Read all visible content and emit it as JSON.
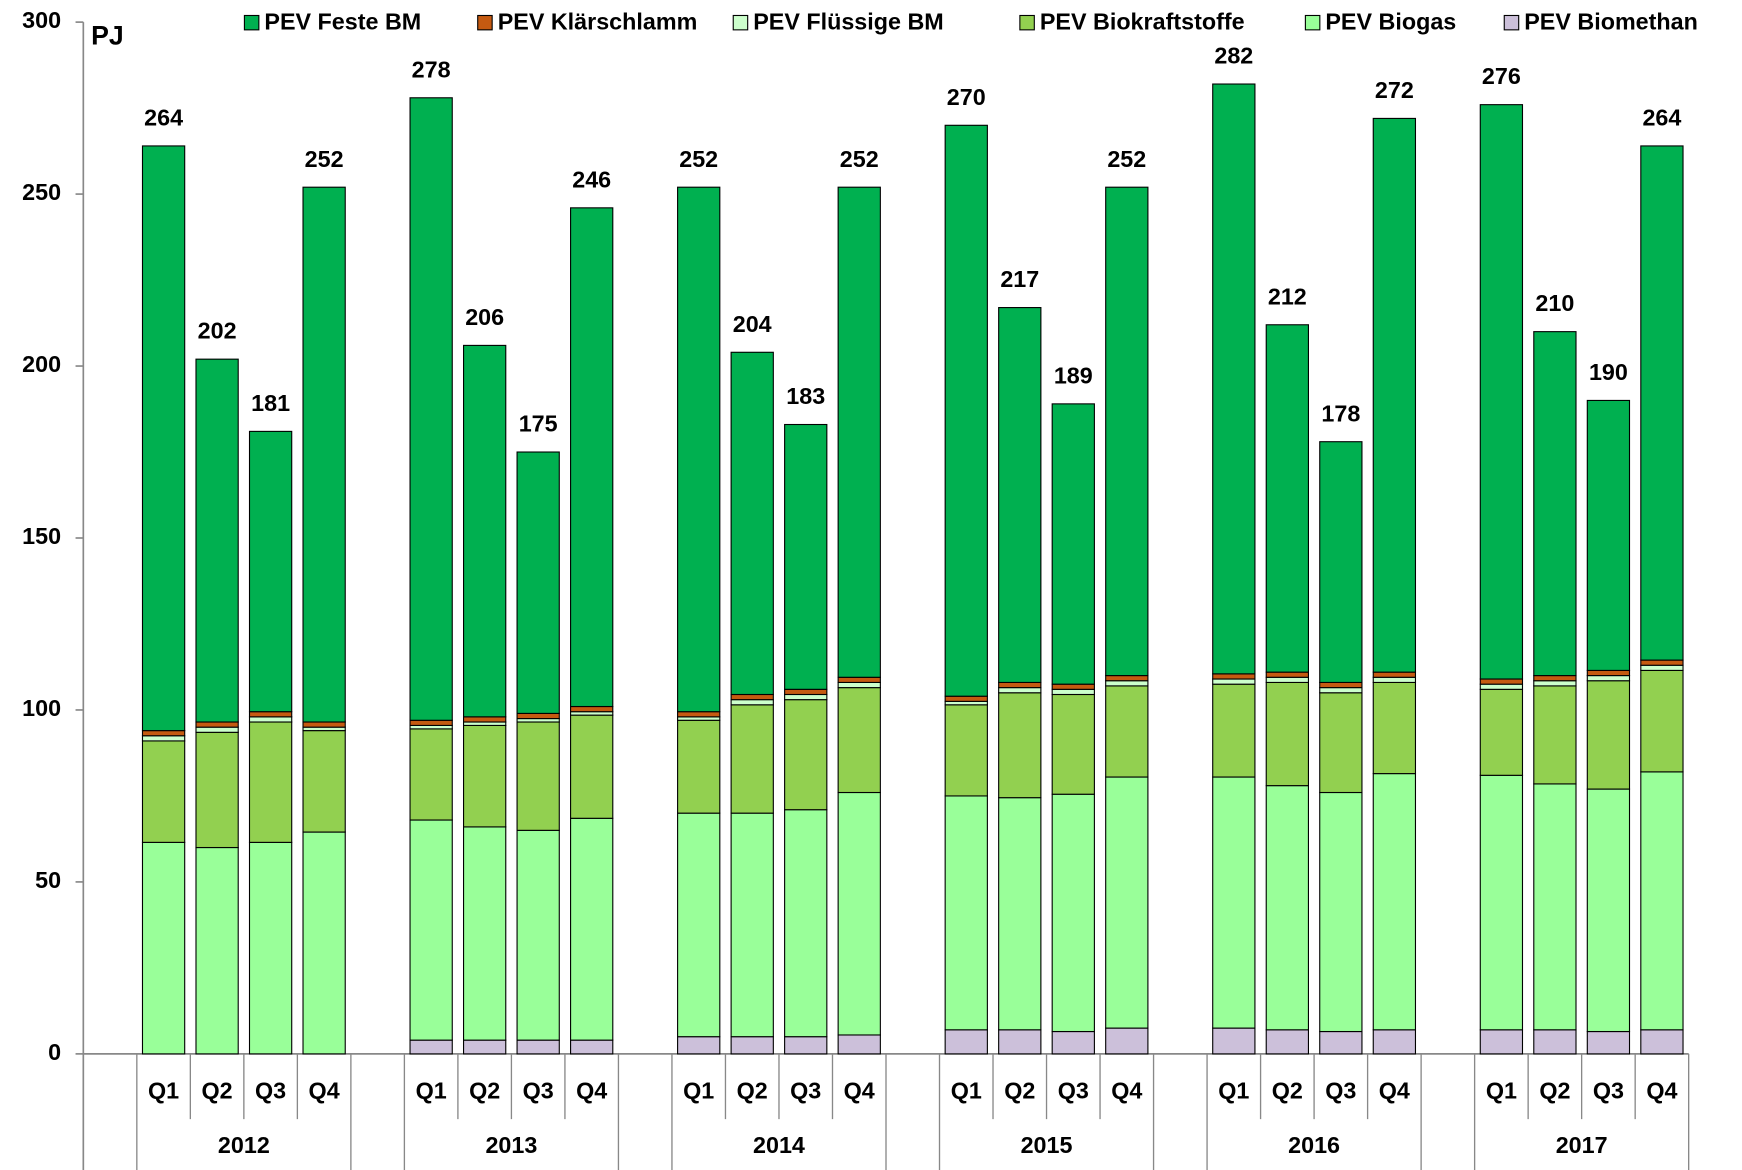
{
  "chart_data": {
    "type": "stacked_bar",
    "ylabel": "PJ",
    "groups": [
      "2012",
      "2013",
      "2014",
      "2015",
      "2016",
      "2017"
    ],
    "categories": [
      "Q1",
      "Q2",
      "Q3",
      "Q4",
      "Q1",
      "Q2",
      "Q3",
      "Q4",
      "Q1",
      "Q2",
      "Q3",
      "Q4",
      "Q1",
      "Q2",
      "Q3",
      "Q4",
      "Q1",
      "Q2",
      "Q3",
      "Q4",
      "Q1",
      "Q2",
      "Q3",
      "Q4"
    ],
    "series": [
      {
        "name": "PEV Feste BM",
        "color": "#00b050",
        "values": [
          170,
          105.5,
          81.5,
          155.5,
          181,
          108,
          76,
          145,
          152.5,
          99.5,
          77,
          142.5,
          166,
          109,
          81.5,
          142,
          171.5,
          101,
          70,
          161,
          167,
          100,
          78.5,
          149.5
        ]
      },
      {
        "name": "PEV Klärschlamm",
        "color": "#c55a11",
        "values": [
          1.5,
          1.5,
          1.5,
          1.5,
          1.5,
          1.5,
          1.5,
          1.5,
          1.5,
          1.5,
          1.5,
          1.5,
          1.5,
          1.5,
          1.5,
          1.5,
          1.5,
          1.5,
          1.5,
          1.5,
          1.5,
          1.5,
          1.5,
          1.5
        ]
      },
      {
        "name": "PEV Flüssige BM",
        "color": "#ccffcc",
        "values": [
          1.5,
          1.5,
          1.5,
          1,
          1,
          1,
          1,
          1,
          1,
          1.5,
          1.5,
          1.5,
          1,
          1.5,
          1.5,
          1.5,
          1.5,
          1.5,
          1.5,
          1.5,
          1.5,
          1.5,
          1.5,
          1.5
        ]
      },
      {
        "name": "PEV Biokraftstoffe",
        "color": "#92d050",
        "values": [
          29.5,
          33.5,
          35,
          29.5,
          26.5,
          29.5,
          31.5,
          30,
          27,
          31.5,
          32,
          30.5,
          26.5,
          30.5,
          29,
          26.5,
          27,
          30,
          29,
          26.5,
          25,
          28.5,
          31.5,
          29.5
        ]
      },
      {
        "name": "PEV Biogas",
        "color": "#99ff99",
        "values": [
          61.5,
          60,
          61.5,
          64.5,
          64,
          62,
          61,
          64.5,
          65,
          65,
          66,
          70.5,
          68,
          67.5,
          69,
          73,
          73,
          71,
          69.5,
          74.5,
          74,
          71.5,
          70.5,
          75
        ]
      },
      {
        "name": "PEV Biomethan",
        "color": "#ccc0da",
        "values": [
          0,
          0,
          0,
          0,
          4,
          4,
          4,
          4,
          5,
          5,
          5,
          5.5,
          7,
          7,
          6.5,
          7.5,
          7.5,
          7,
          6.5,
          7,
          7,
          7,
          6.5,
          7
        ]
      }
    ],
    "totals": [
      264,
      202,
      181,
      252,
      278,
      206,
      175,
      246,
      252,
      204,
      183,
      252,
      270,
      217,
      189,
      252,
      282,
      212,
      178,
      272,
      276,
      210,
      190,
      264
    ],
    "ylim": [
      0,
      300
    ],
    "yticks": [
      0,
      50,
      100,
      150,
      200,
      250,
      300
    ],
    "grid": false
  }
}
